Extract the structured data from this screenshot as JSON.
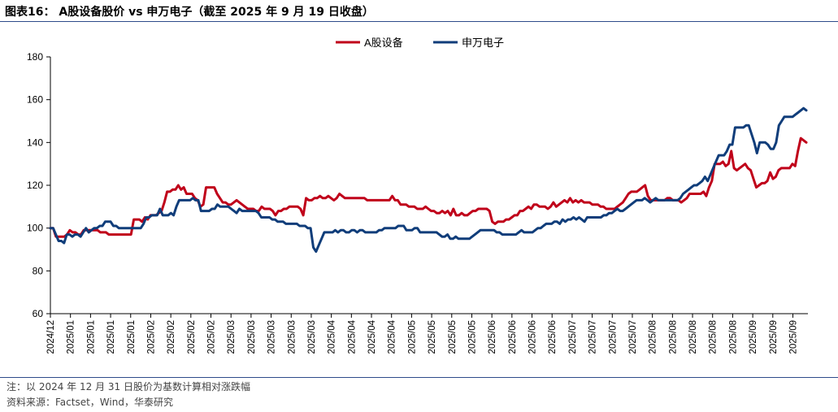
{
  "title": "图表16： A股设备股价 vs 申万电子（截至 2025 年 9 月 19 日收盘）",
  "footnotes": {
    "note": "注：以 2024 年 12 月 31 日股价为基数计算相对涨跌幅",
    "source": "资料来源：Factset，Wind，华泰研究"
  },
  "colors": {
    "series_a": "#c0001a",
    "series_b": "#103d7a",
    "rule": "#2d4b8a"
  },
  "chart_data": {
    "type": "line",
    "title": "",
    "xlabel": "",
    "ylabel": "",
    "ylim": [
      60,
      180
    ],
    "yticks": [
      60,
      80,
      100,
      120,
      140,
      160,
      180
    ],
    "grid": false,
    "legend_position": "top-center",
    "x_tick_labels": [
      "2024/12",
      "2025/01",
      "2025/01",
      "2025/01",
      "2025/01",
      "2025/02",
      "2025/02",
      "2025/02",
      "2025/02",
      "2025/03",
      "2025/03",
      "2025/03",
      "2025/03",
      "2025/03",
      "2025/04",
      "2025/04",
      "2025/04",
      "2025/04",
      "2025/05",
      "2025/05",
      "2025/05",
      "2025/05",
      "2025/06",
      "2025/06",
      "2025/06",
      "2025/06",
      "2025/07",
      "2025/07",
      "2025/07",
      "2025/07",
      "2025/08",
      "2025/08",
      "2025/08",
      "2025/08",
      "2025/08",
      "2025/09",
      "2025/09",
      "2025/09"
    ],
    "series": [
      {
        "name": "A股设备",
        "color": "#c0001a",
        "values": [
          100,
          100,
          96,
          96,
          96,
          96,
          97,
          99,
          98,
          98,
          97,
          97,
          99,
          99,
          99,
          99,
          99,
          99,
          98,
          98,
          98,
          97,
          97,
          97,
          97,
          97,
          97,
          97,
          97,
          97,
          104,
          104,
          104,
          103,
          105,
          104,
          106,
          106,
          106,
          107,
          108,
          112,
          117,
          117,
          118,
          118,
          120,
          118,
          119,
          116,
          116,
          116,
          114,
          113,
          110,
          111,
          119,
          119,
          119,
          119,
          116,
          114,
          112,
          112,
          111,
          111,
          112,
          113,
          112,
          111,
          110,
          109,
          109,
          109,
          108,
          108,
          110,
          109,
          109,
          109,
          108,
          106,
          108,
          108,
          109,
          109,
          110,
          110,
          110,
          110,
          109,
          106,
          114,
          113,
          113,
          114,
          114,
          115,
          114,
          114,
          115,
          114,
          113,
          114,
          116,
          115,
          114,
          114,
          114,
          114,
          114,
          114,
          114,
          114,
          113,
          113,
          113,
          113,
          113,
          113,
          113,
          113,
          113,
          115,
          113,
          113,
          111,
          111,
          111,
          110,
          110,
          110,
          109,
          109,
          109,
          110,
          109,
          108,
          108,
          107,
          107,
          108,
          107,
          108,
          106,
          109,
          106,
          106,
          107,
          106,
          106,
          107,
          108,
          108,
          109,
          109,
          109,
          109,
          108,
          103,
          102,
          103,
          103,
          103,
          104,
          104,
          105,
          106,
          106,
          108,
          108,
          109,
          110,
          109,
          111,
          111,
          110,
          110,
          110,
          109,
          110,
          112,
          110,
          111,
          112,
          113,
          112,
          114,
          112,
          113,
          112,
          113,
          112,
          112,
          112,
          111,
          111,
          111,
          110,
          110,
          109,
          109,
          109,
          109,
          110,
          111,
          112,
          114,
          116,
          117,
          117,
          117,
          118,
          119,
          120,
          115,
          113,
          113,
          113,
          113,
          113,
          113,
          114,
          114,
          113,
          113,
          113,
          112,
          113,
          114,
          116,
          116,
          116,
          116,
          116,
          117,
          115,
          119,
          122,
          130,
          130,
          130,
          131,
          129,
          130,
          136,
          128,
          127,
          128,
          129,
          130,
          128,
          127,
          123,
          119,
          120,
          121,
          121,
          122,
          126,
          123,
          124,
          127,
          128,
          128,
          128,
          128,
          130,
          129,
          136,
          142,
          141,
          140
        ],
        "id": "series-a"
      },
      {
        "name": "申万电子",
        "color": "#103d7a",
        "values": [
          100,
          100,
          97,
          94,
          94,
          93,
          97,
          97,
          96,
          97,
          97,
          96,
          98,
          100,
          98,
          99,
          100,
          100,
          101,
          101,
          103,
          103,
          103,
          101,
          101,
          100,
          100,
          100,
          100,
          100,
          100,
          100,
          100,
          100,
          102,
          105,
          105,
          106,
          106,
          106,
          109,
          106,
          106,
          106,
          107,
          106,
          110,
          113,
          113,
          113,
          113,
          113,
          114,
          113,
          113,
          108,
          108,
          108,
          108,
          109,
          109,
          111,
          110,
          110,
          110,
          110,
          109,
          108,
          107,
          109,
          108,
          108,
          108,
          108,
          108,
          108,
          107,
          105,
          105,
          105,
          105,
          104,
          104,
          103,
          103,
          103,
          102,
          102,
          102,
          102,
          102,
          101,
          101,
          101,
          100,
          100,
          91,
          89,
          92,
          95,
          98,
          98,
          98,
          98,
          99,
          98,
          99,
          99,
          98,
          98,
          99,
          99,
          98,
          99,
          99,
          98,
          98,
          98,
          98,
          98,
          99,
          99,
          100,
          100,
          100,
          100,
          100,
          101,
          101,
          101,
          99,
          99,
          99,
          100,
          100,
          98,
          98,
          98,
          98,
          98,
          98,
          98,
          97,
          96,
          96,
          97,
          95,
          95,
          96,
          95,
          95,
          95,
          95,
          95,
          96,
          97,
          98,
          99,
          99,
          99,
          99,
          99,
          99,
          98,
          98,
          97,
          97,
          97,
          97,
          97,
          97,
          98,
          99,
          98,
          98,
          98,
          98,
          99,
          100,
          100,
          101,
          102,
          102,
          102,
          103,
          103,
          102,
          104,
          103,
          104,
          104,
          105,
          104,
          105,
          104,
          103,
          105,
          105,
          105,
          105,
          105,
          105,
          106,
          106,
          107,
          107,
          108,
          109,
          108,
          108,
          109,
          110,
          111,
          112,
          113,
          113,
          113,
          114,
          113,
          112,
          113,
          114,
          113,
          113,
          113,
          113,
          113,
          113,
          113,
          113,
          114,
          116,
          117,
          118,
          119,
          120,
          120,
          121,
          122,
          124,
          122,
          125,
          128,
          131,
          134,
          134,
          134,
          136,
          139,
          139,
          147,
          147,
          147,
          147,
          148,
          148,
          144,
          140,
          135,
          140,
          140,
          140,
          139,
          137,
          137,
          140,
          148,
          150,
          152,
          152,
          152,
          152,
          153,
          154,
          155,
          156,
          155
        ],
        "id": "series-b"
      }
    ]
  }
}
